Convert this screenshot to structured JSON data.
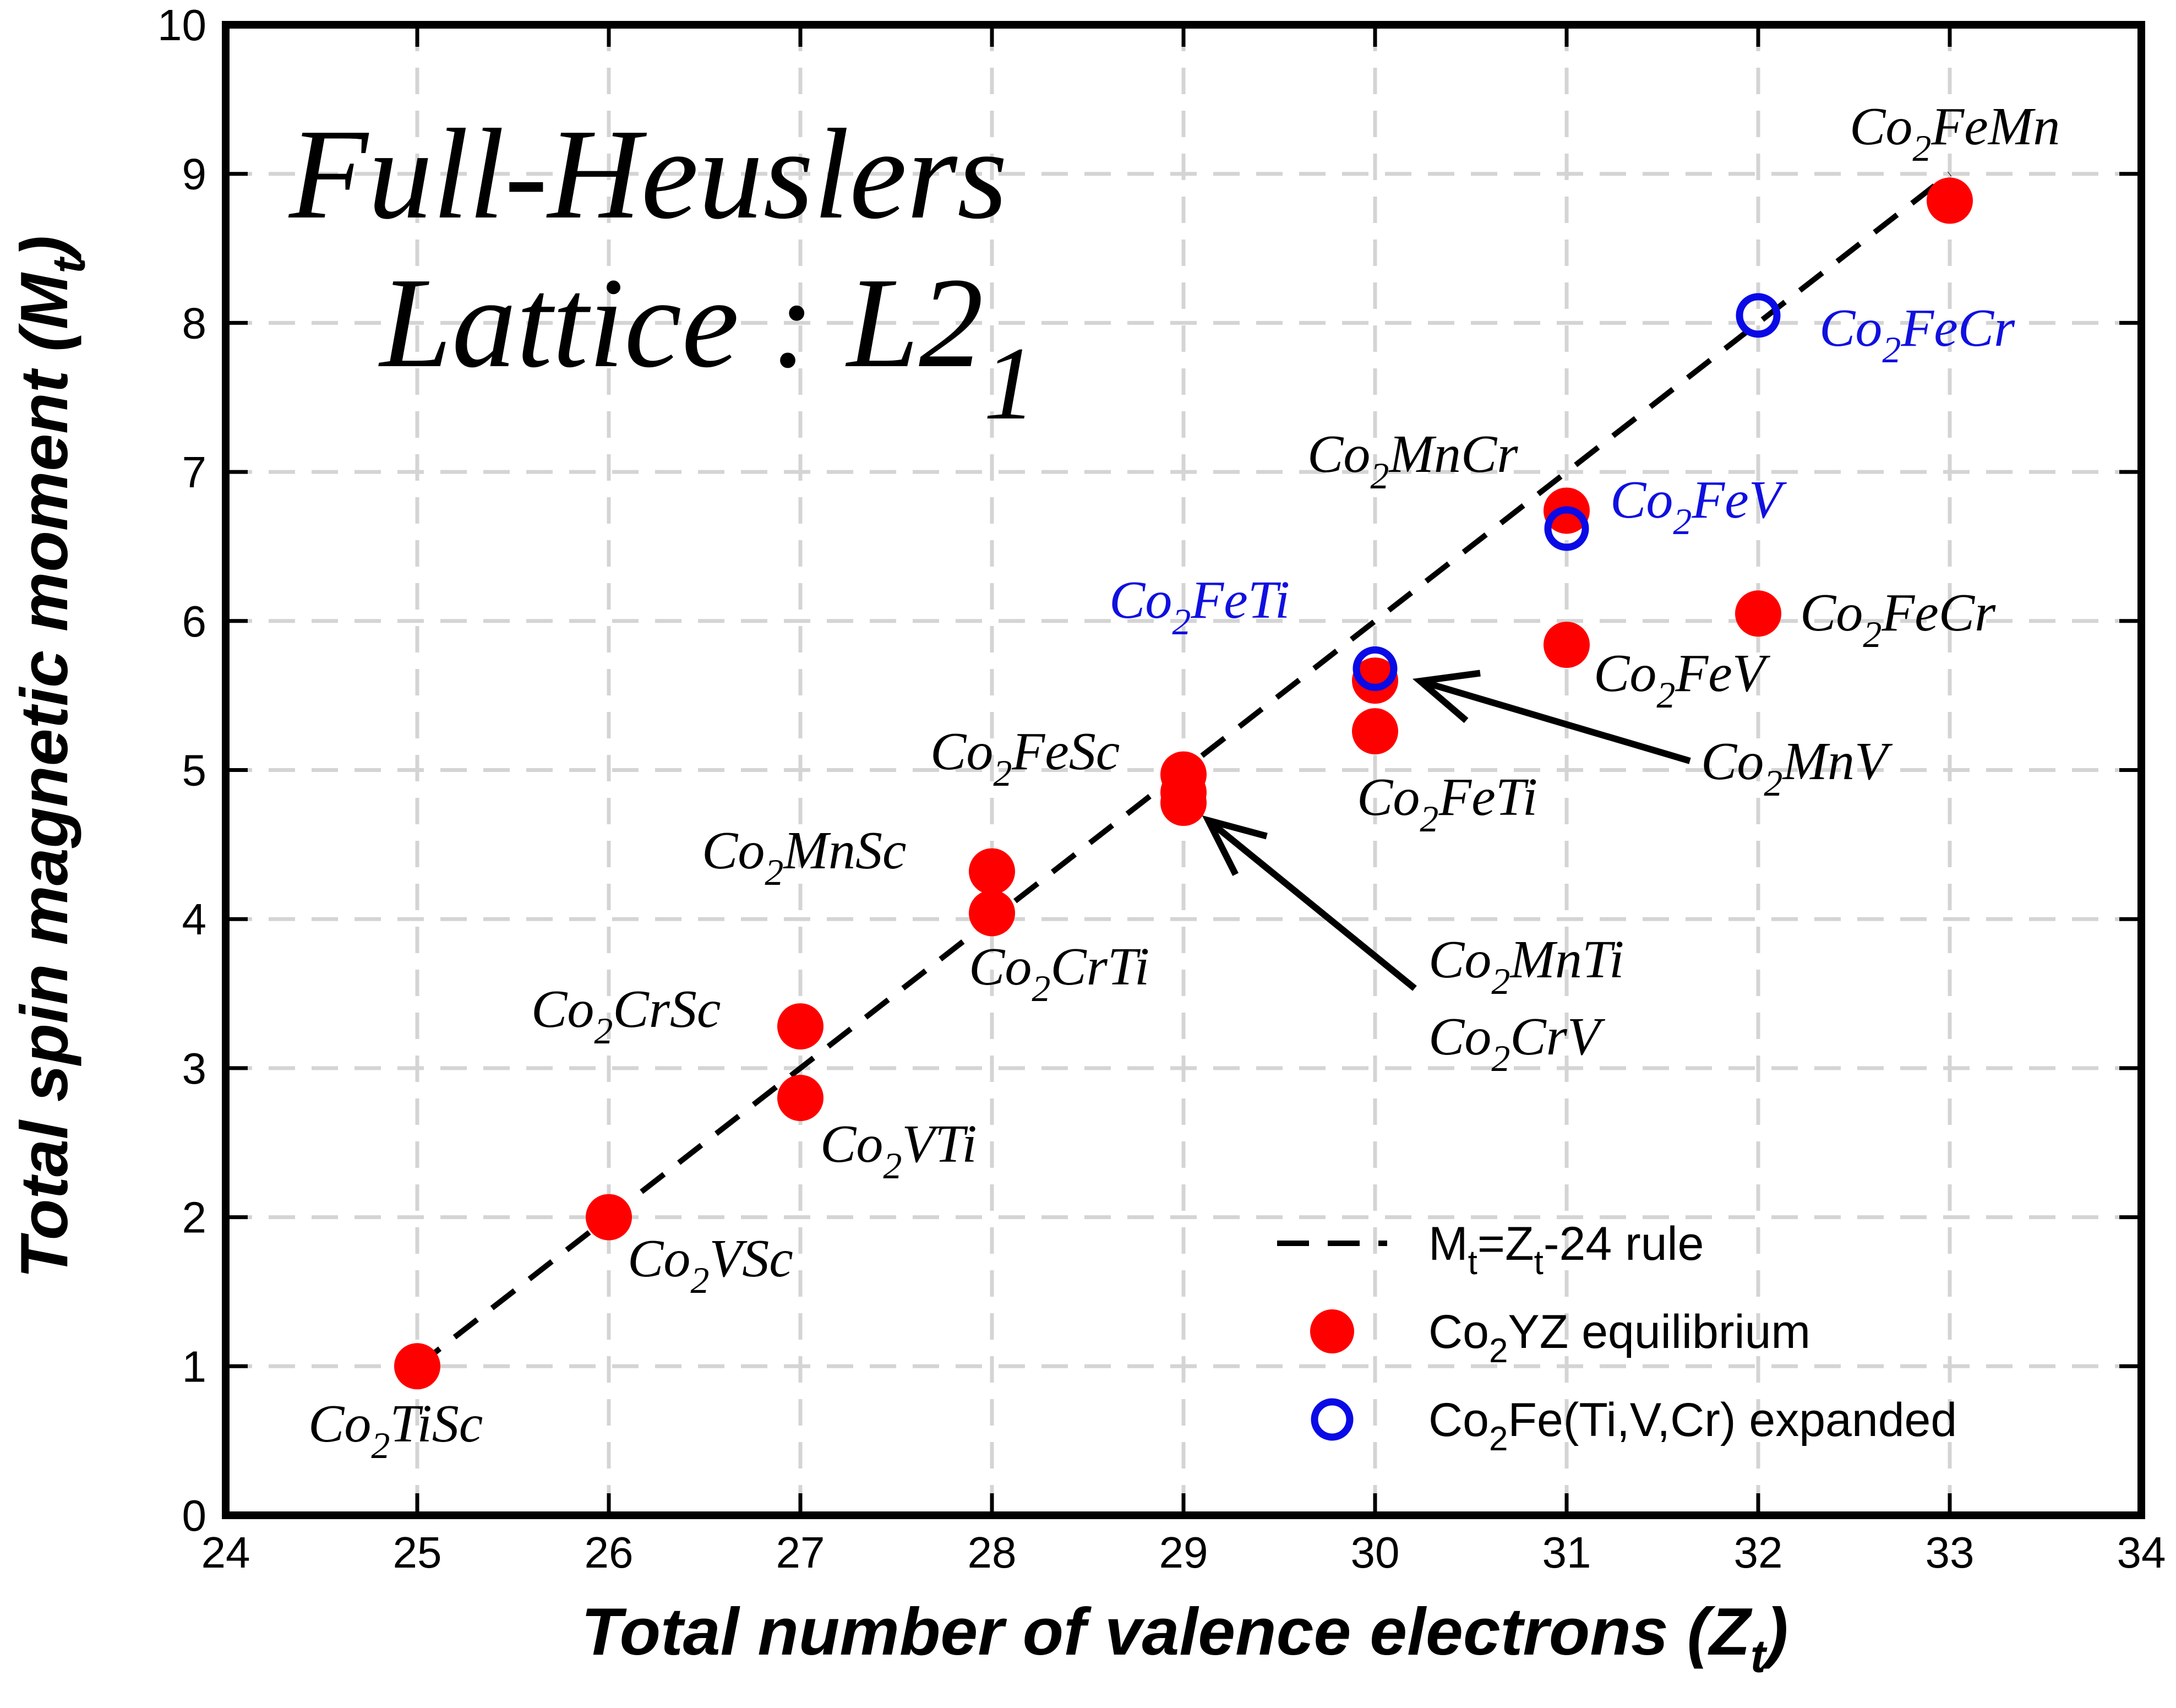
{
  "chart_data": {
    "type": "scatter",
    "title": "Full-Heuslers",
    "title_line2": {
      "main": "Lattice : L2",
      "sub": "1"
    },
    "xlabel": {
      "main": "Total number of valence electrons (Z",
      "sub": "t",
      "end": ")"
    },
    "ylabel": {
      "main": "Total spin magnetic moment (M",
      "sub": "t",
      "end": ")"
    },
    "xlim": [
      24,
      34
    ],
    "ylim": [
      0,
      10
    ],
    "x_ticks": [
      "24",
      "25",
      "26",
      "27",
      "28",
      "29",
      "30",
      "31",
      "32",
      "33",
      "34"
    ],
    "y_ticks": [
      "0",
      "1",
      "2",
      "3",
      "4",
      "5",
      "6",
      "7",
      "8",
      "9",
      "10"
    ],
    "grid": true,
    "legend_position": "bottom-right",
    "colors": {
      "equilibrium": "#ff0000",
      "expanded": "#0a0ae6",
      "rule": "#000000",
      "blue_label": "#1010e0"
    },
    "rule_line": {
      "x": [
        25,
        33
      ],
      "y": [
        1,
        9
      ]
    },
    "series": [
      {
        "name": "Co2YZ equilibrium",
        "marker": "filled-circle",
        "points": [
          {
            "x": 25,
            "y": 1.0
          },
          {
            "x": 26,
            "y": 2.0
          },
          {
            "x": 27,
            "y": 3.28
          },
          {
            "x": 27,
            "y": 2.8
          },
          {
            "x": 28,
            "y": 4.32
          },
          {
            "x": 28,
            "y": 4.04
          },
          {
            "x": 29,
            "y": 4.97
          },
          {
            "x": 29,
            "y": 4.85
          },
          {
            "x": 29,
            "y": 4.78
          },
          {
            "x": 30,
            "y": 5.6
          },
          {
            "x": 30,
            "y": 5.26
          },
          {
            "x": 31,
            "y": 6.74
          },
          {
            "x": 31,
            "y": 5.84
          },
          {
            "x": 32,
            "y": 6.05
          },
          {
            "x": 33,
            "y": 8.82
          }
        ]
      },
      {
        "name": "Co2Fe(Ti,V,Cr) expanded",
        "marker": "open-circle",
        "points": [
          {
            "x": 30,
            "y": 5.68
          },
          {
            "x": 31,
            "y": 6.62
          },
          {
            "x": 32,
            "y": 8.05
          }
        ]
      }
    ],
    "point_labels": [
      {
        "pre": "Co",
        "sub": "2",
        "post": "TiSc",
        "color": "black"
      },
      {
        "pre": "Co",
        "sub": "2",
        "post": "VSc",
        "color": "black"
      },
      {
        "pre": "Co",
        "sub": "2",
        "post": "CrSc",
        "color": "black"
      },
      {
        "pre": "Co",
        "sub": "2",
        "post": "VTi",
        "color": "black"
      },
      {
        "pre": "Co",
        "sub": "2",
        "post": "MnSc",
        "color": "black"
      },
      {
        "pre": "Co",
        "sub": "2",
        "post": "CrTi",
        "color": "black"
      },
      {
        "pre": "Co",
        "sub": "2",
        "post": "FeSc",
        "color": "black"
      },
      {
        "pre": "Co",
        "sub": "2",
        "post": "MnTi",
        "color": "black"
      },
      {
        "pre": "Co",
        "sub": "2",
        "post": "CrV",
        "color": "black"
      },
      {
        "pre": "Co",
        "sub": "2",
        "post": "FeTi",
        "color": "blue"
      },
      {
        "pre": "Co",
        "sub": "2",
        "post": "FeTi",
        "color": "black"
      },
      {
        "pre": "Co",
        "sub": "2",
        "post": "MnV",
        "color": "black"
      },
      {
        "pre": "Co",
        "sub": "2",
        "post": "MnCr",
        "color": "black"
      },
      {
        "pre": "Co",
        "sub": "2",
        "post": "FeV",
        "color": "blue"
      },
      {
        "pre": "Co",
        "sub": "2",
        "post": "FeV",
        "color": "black"
      },
      {
        "pre": "Co",
        "sub": "2",
        "post": "FeCr",
        "color": "black"
      },
      {
        "pre": "Co",
        "sub": "2",
        "post": "FeCr",
        "color": "blue"
      },
      {
        "pre": "Co",
        "sub": "2",
        "post": "FeMn",
        "color": "black"
      }
    ],
    "legend": [
      {
        "marker": "dashed-line",
        "parts": [
          [
            "M",
            ""
          ],
          [
            "t",
            "sub"
          ],
          [
            "=Z",
            ""
          ],
          [
            "t",
            "sub"
          ],
          [
            "-24 rule",
            ""
          ]
        ]
      },
      {
        "marker": "filled-circle",
        "parts": [
          [
            "Co",
            ""
          ],
          [
            "2",
            "sub"
          ],
          [
            "YZ equilibrium",
            ""
          ]
        ]
      },
      {
        "marker": "open-circle",
        "parts": [
          [
            "Co",
            ""
          ],
          [
            "2",
            "sub"
          ],
          [
            "Fe(Ti,V,Cr) expanded",
            ""
          ]
        ]
      }
    ]
  }
}
